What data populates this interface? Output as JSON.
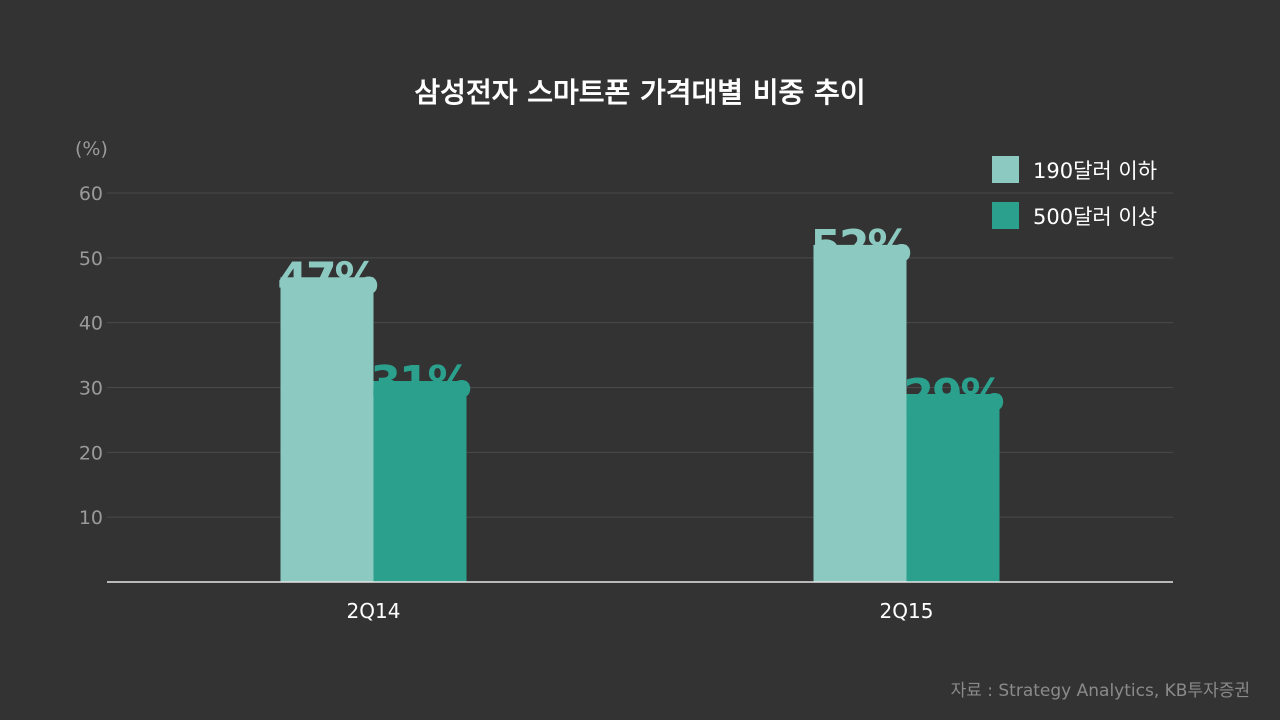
{
  "chart_data": {
    "type": "bar",
    "title": "삼성전자 스마트폰 가격대별 비중 추이",
    "unit_label": "(%)",
    "categories": [
      "2Q14",
      "2Q15"
    ],
    "series": [
      {
        "name": "190달러 이하",
        "values": [
          47,
          52
        ],
        "labels": [
          "47%",
          "52%"
        ],
        "color": "#8ccac1"
      },
      {
        "name": "500달러 이상",
        "values": [
          31,
          29
        ],
        "labels": [
          "31%",
          "29%"
        ],
        "color": "#2aa08d"
      }
    ],
    "yticks": [
      10,
      20,
      30,
      40,
      50,
      60
    ],
    "ylim": [
      0,
      60
    ],
    "grid": true,
    "legend_position": "top-right"
  },
  "source": "자료 : Strategy Analytics, KB투자증권"
}
